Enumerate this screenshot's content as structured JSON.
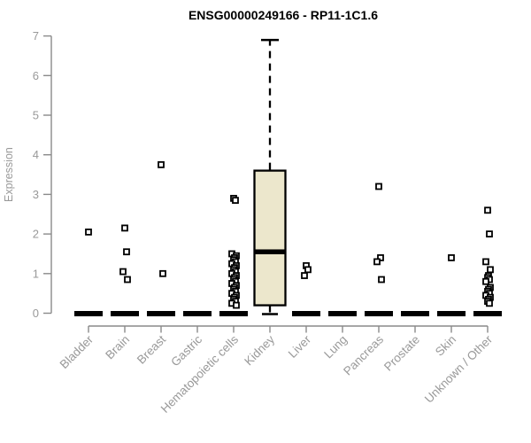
{
  "chart_data": {
    "type": "boxplot",
    "title": "ENSG00000249166 - RP11-1C1.6",
    "ylabel": "Expression",
    "ylim": [
      0,
      7
    ],
    "yticks": [
      0,
      1,
      2,
      3,
      4,
      5,
      6,
      7
    ],
    "grid": false,
    "legend": null,
    "categories": [
      "Bladder",
      "Brain",
      "Breast",
      "Gastric",
      "Hematopoietic cells",
      "Kidney",
      "Liver",
      "Lung",
      "Pancreas",
      "Prostate",
      "Skin",
      "Unknown / Other"
    ],
    "series": [
      {
        "category": "Bladder",
        "median": 0,
        "box": null,
        "points": [
          2.05
        ]
      },
      {
        "category": "Brain",
        "median": 0,
        "box": null,
        "points": [
          2.15,
          1.55,
          1.05,
          0.85
        ]
      },
      {
        "category": "Breast",
        "median": 0,
        "box": null,
        "points": [
          3.75,
          1.0
        ]
      },
      {
        "category": "Gastric",
        "median": 0,
        "box": null,
        "points": []
      },
      {
        "category": "Hematopoietic cells",
        "median": 0,
        "box": null,
        "points": [
          2.9,
          2.85,
          1.5,
          1.45,
          1.4,
          1.35,
          1.3,
          1.25,
          1.2,
          1.15,
          1.1,
          1.05,
          1.0,
          0.95,
          0.9,
          0.85,
          0.8,
          0.75,
          0.7,
          0.65,
          0.6,
          0.55,
          0.5,
          0.45,
          0.4,
          0.35,
          0.3,
          0.25,
          0.2
        ]
      },
      {
        "category": "Kidney",
        "median": 1.55,
        "box": {
          "whisker_high": 6.9,
          "q3": 3.6,
          "median": 1.55,
          "q1": 0.2,
          "whisker_low": 0
        },
        "points": []
      },
      {
        "category": "Liver",
        "median": 0,
        "box": null,
        "points": [
          1.2,
          1.1,
          0.95
        ]
      },
      {
        "category": "Lung",
        "median": 0,
        "box": null,
        "points": []
      },
      {
        "category": "Pancreas",
        "median": 0,
        "box": null,
        "points": [
          3.2,
          1.4,
          1.3,
          0.85
        ]
      },
      {
        "category": "Prostate",
        "median": 0,
        "box": null,
        "points": []
      },
      {
        "category": "Skin",
        "median": 0,
        "box": null,
        "points": [
          1.4
        ]
      },
      {
        "category": "Unknown / Other",
        "median": 0,
        "box": null,
        "points": [
          2.6,
          2.0,
          1.3,
          1.1,
          0.95,
          0.9,
          0.85,
          0.8,
          0.65,
          0.6,
          0.55,
          0.5,
          0.45,
          0.4,
          0.35,
          0.3,
          0.25
        ]
      }
    ],
    "colors": {
      "box_fill": "#ece7cc",
      "box_stroke": "#000000",
      "median_color": "#000000",
      "point_fill": "#ffffff",
      "point_stroke": "#000000",
      "axis": "#8a8a8a",
      "tick_label": "#999999",
      "title": "#000000",
      "background": "#ffffff"
    }
  }
}
